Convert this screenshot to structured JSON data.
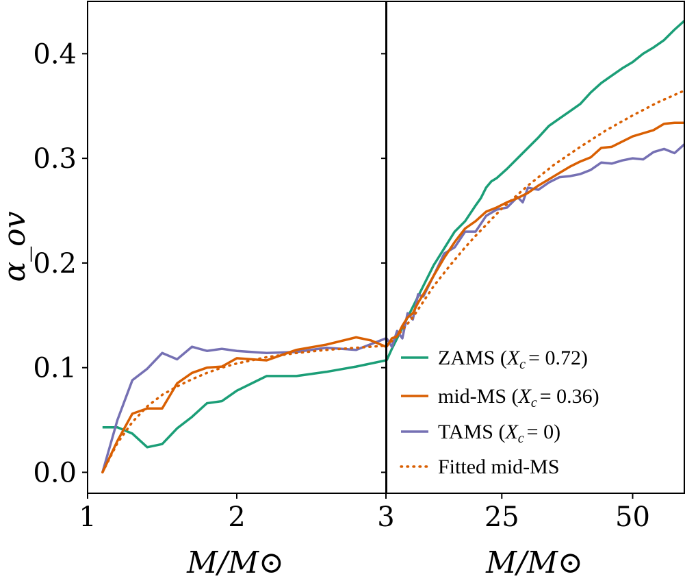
{
  "chart_data": {
    "type": "line",
    "ylabel": "α_ov",
    "ylim": [
      -0.02,
      0.45
    ],
    "yticks": [
      0.0,
      0.1,
      0.2,
      0.3,
      0.4
    ],
    "ytick_labels": [
      "0.0",
      "0.1",
      "0.2",
      "0.3",
      "0.4"
    ],
    "xlabel": "M/M⊙",
    "colors": {
      "zams": "#1b9e77",
      "mid": "#d95f02",
      "tams": "#7570b3",
      "fit": "#d95f02"
    },
    "panels": [
      {
        "id": "left",
        "xlim": [
          1.0,
          3.0
        ],
        "xticks": [
          1,
          2,
          3
        ],
        "xtick_labels": [
          "1",
          "2",
          "3"
        ],
        "xlabel": "M/M⊙"
      },
      {
        "id": "right",
        "xlim": [
          3.0,
          60.0
        ],
        "xticks": [
          25,
          50
        ],
        "xtick_labels": [
          "25",
          "50"
        ],
        "xlabel": "M/M⊙"
      }
    ],
    "legend": {
      "placement": "lower-right",
      "entries": [
        {
          "key": "zams",
          "prefix": "ZAMS (",
          "var": "X",
          "sub": "c",
          "value": "= 0.72)",
          "style": "solid"
        },
        {
          "key": "mid",
          "prefix": "mid-MS (",
          "var": "X",
          "sub": "c",
          "value": "= 0.36)",
          "style": "solid"
        },
        {
          "key": "tams",
          "prefix": "TAMS (",
          "var": "X",
          "sub": "c",
          "value": "= 0)",
          "style": "solid"
        },
        {
          "key": "fit",
          "prefix": "Fitted mid-MS",
          "var": "",
          "sub": "",
          "value": "",
          "style": "dotted"
        }
      ]
    },
    "series": [
      {
        "key": "zams",
        "name": "ZAMS (Xc = 0.72)",
        "left": [
          [
            1.1,
            0.043
          ],
          [
            1.2,
            0.043
          ],
          [
            1.3,
            0.037
          ],
          [
            1.4,
            0.024
          ],
          [
            1.5,
            0.027
          ],
          [
            1.6,
            0.042
          ],
          [
            1.7,
            0.053
          ],
          [
            1.8,
            0.066
          ],
          [
            1.9,
            0.068
          ],
          [
            2.0,
            0.078
          ],
          [
            2.2,
            0.092
          ],
          [
            2.4,
            0.092
          ],
          [
            2.6,
            0.096
          ],
          [
            2.8,
            0.101
          ],
          [
            3.0,
            0.107
          ]
        ],
        "right": [
          [
            3,
            0.107
          ],
          [
            4,
            0.118
          ],
          [
            5,
            0.128
          ],
          [
            6,
            0.138
          ],
          [
            7,
            0.148
          ],
          [
            8,
            0.158
          ],
          [
            10,
            0.178
          ],
          [
            12,
            0.198
          ],
          [
            14,
            0.214
          ],
          [
            16,
            0.23
          ],
          [
            18,
            0.24
          ],
          [
            20,
            0.255
          ],
          [
            21,
            0.262
          ],
          [
            22,
            0.272
          ],
          [
            23,
            0.278
          ],
          [
            24,
            0.281
          ],
          [
            26,
            0.29
          ],
          [
            28,
            0.3
          ],
          [
            30,
            0.31
          ],
          [
            32,
            0.32
          ],
          [
            34,
            0.331
          ],
          [
            36,
            0.338
          ],
          [
            38,
            0.345
          ],
          [
            40,
            0.352
          ],
          [
            42,
            0.363
          ],
          [
            44,
            0.372
          ],
          [
            46,
            0.379
          ],
          [
            48,
            0.386
          ],
          [
            50,
            0.392
          ],
          [
            52,
            0.4
          ],
          [
            54,
            0.406
          ],
          [
            56,
            0.413
          ],
          [
            58,
            0.423
          ],
          [
            60,
            0.432
          ]
        ]
      },
      {
        "key": "mid",
        "name": "mid-MS (Xc = 0.36)",
        "left": [
          [
            1.1,
            0.0
          ],
          [
            1.2,
            0.03
          ],
          [
            1.3,
            0.056
          ],
          [
            1.4,
            0.061
          ],
          [
            1.5,
            0.061
          ],
          [
            1.6,
            0.085
          ],
          [
            1.7,
            0.095
          ],
          [
            1.8,
            0.1
          ],
          [
            1.9,
            0.101
          ],
          [
            2.0,
            0.109
          ],
          [
            2.2,
            0.107
          ],
          [
            2.4,
            0.117
          ],
          [
            2.6,
            0.122
          ],
          [
            2.8,
            0.129
          ],
          [
            2.9,
            0.126
          ],
          [
            3.0,
            0.12
          ]
        ],
        "right": [
          [
            3,
            0.12
          ],
          [
            4,
            0.128
          ],
          [
            5,
            0.13
          ],
          [
            6,
            0.14
          ],
          [
            7,
            0.148
          ],
          [
            8,
            0.152
          ],
          [
            9,
            0.162
          ],
          [
            10,
            0.17
          ],
          [
            12,
            0.188
          ],
          [
            14,
            0.205
          ],
          [
            16,
            0.22
          ],
          [
            18,
            0.233
          ],
          [
            20,
            0.24
          ],
          [
            22,
            0.249
          ],
          [
            24,
            0.253
          ],
          [
            26,
            0.258
          ],
          [
            28,
            0.262
          ],
          [
            30,
            0.267
          ],
          [
            32,
            0.274
          ],
          [
            34,
            0.28
          ],
          [
            36,
            0.286
          ],
          [
            38,
            0.292
          ],
          [
            40,
            0.297
          ],
          [
            42,
            0.301
          ],
          [
            44,
            0.31
          ],
          [
            46,
            0.311
          ],
          [
            48,
            0.316
          ],
          [
            50,
            0.321
          ],
          [
            52,
            0.324
          ],
          [
            54,
            0.327
          ],
          [
            56,
            0.333
          ],
          [
            58,
            0.334
          ],
          [
            60,
            0.334
          ]
        ]
      },
      {
        "key": "tams",
        "name": "TAMS (Xc = 0)",
        "left": [
          [
            1.1,
            0.0
          ],
          [
            1.2,
            0.05
          ],
          [
            1.3,
            0.088
          ],
          [
            1.4,
            0.099
          ],
          [
            1.5,
            0.114
          ],
          [
            1.6,
            0.108
          ],
          [
            1.7,
            0.12
          ],
          [
            1.8,
            0.116
          ],
          [
            1.9,
            0.118
          ],
          [
            2.0,
            0.116
          ],
          [
            2.2,
            0.114
          ],
          [
            2.4,
            0.115
          ],
          [
            2.6,
            0.119
          ],
          [
            2.8,
            0.117
          ],
          [
            3.0,
            0.128
          ]
        ],
        "right": [
          [
            3,
            0.128
          ],
          [
            4,
            0.12
          ],
          [
            5,
            0.135
          ],
          [
            6,
            0.128
          ],
          [
            7,
            0.152
          ],
          [
            8,
            0.146
          ],
          [
            9,
            0.17
          ],
          [
            10,
            0.168
          ],
          [
            12,
            0.188
          ],
          [
            14,
            0.209
          ],
          [
            16,
            0.215
          ],
          [
            18,
            0.23
          ],
          [
            20,
            0.23
          ],
          [
            22,
            0.245
          ],
          [
            24,
            0.251
          ],
          [
            26,
            0.253
          ],
          [
            28,
            0.263
          ],
          [
            29,
            0.258
          ],
          [
            30,
            0.272
          ],
          [
            32,
            0.27
          ],
          [
            34,
            0.277
          ],
          [
            36,
            0.282
          ],
          [
            38,
            0.283
          ],
          [
            40,
            0.285
          ],
          [
            42,
            0.289
          ],
          [
            44,
            0.296
          ],
          [
            46,
            0.295
          ],
          [
            48,
            0.298
          ],
          [
            50,
            0.3
          ],
          [
            52,
            0.299
          ],
          [
            54,
            0.306
          ],
          [
            56,
            0.309
          ],
          [
            58,
            0.305
          ],
          [
            60,
            0.314
          ]
        ]
      },
      {
        "key": "fit",
        "name": "Fitted mid-MS",
        "left": [
          [
            1.1,
            0.0
          ],
          [
            1.2,
            0.028
          ],
          [
            1.3,
            0.048
          ],
          [
            1.4,
            0.063
          ],
          [
            1.5,
            0.074
          ],
          [
            1.6,
            0.082
          ],
          [
            1.7,
            0.089
          ],
          [
            1.8,
            0.095
          ],
          [
            1.9,
            0.1
          ],
          [
            2.0,
            0.104
          ],
          [
            2.2,
            0.11
          ],
          [
            2.4,
            0.114
          ],
          [
            2.6,
            0.117
          ],
          [
            2.8,
            0.119
          ],
          [
            3.0,
            0.121
          ]
        ],
        "right": [
          [
            3,
            0.121
          ],
          [
            5,
            0.13
          ],
          [
            8,
            0.148
          ],
          [
            10,
            0.163
          ],
          [
            12,
            0.178
          ],
          [
            15,
            0.197
          ],
          [
            18,
            0.215
          ],
          [
            20,
            0.226
          ],
          [
            25,
            0.252
          ],
          [
            30,
            0.274
          ],
          [
            35,
            0.294
          ],
          [
            40,
            0.311
          ],
          [
            45,
            0.327
          ],
          [
            50,
            0.341
          ],
          [
            55,
            0.354
          ],
          [
            60,
            0.365
          ]
        ]
      }
    ]
  }
}
